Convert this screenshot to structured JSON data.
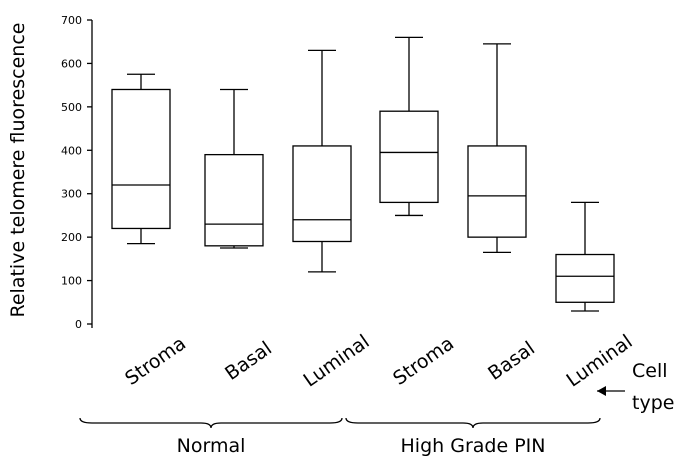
{
  "chart_data": {
    "type": "boxplot",
    "ylabel": "Relative telomere fluorescence",
    "ylim": [
      0,
      700
    ],
    "yticks": [
      "0",
      "100",
      "200",
      "300",
      "400",
      "500",
      "600",
      "700"
    ],
    "categories": [
      "Stroma",
      "Basal",
      "Luminal",
      "Stroma",
      "Basal",
      "Luminal"
    ],
    "groups": [
      {
        "label": "Normal",
        "categories": [
          0,
          1,
          2
        ]
      },
      {
        "label": "High Grade PIN",
        "categories": [
          3,
          4,
          5
        ]
      }
    ],
    "boxes": [
      {
        "min": 185,
        "q1": 220,
        "median": 320,
        "q3": 540,
        "max": 575
      },
      {
        "min": 175,
        "q1": 180,
        "median": 230,
        "q3": 390,
        "max": 540
      },
      {
        "min": 120,
        "q1": 190,
        "median": 240,
        "q3": 410,
        "max": 630
      },
      {
        "min": 250,
        "q1": 280,
        "median": 395,
        "q3": 490,
        "max": 660
      },
      {
        "min": 165,
        "q1": 200,
        "median": 295,
        "q3": 410,
        "max": 645
      },
      {
        "min": 30,
        "q1": 50,
        "median": 110,
        "q3": 160,
        "max": 280
      }
    ],
    "annotation": {
      "line1": "Cell",
      "line2": "type"
    }
  }
}
